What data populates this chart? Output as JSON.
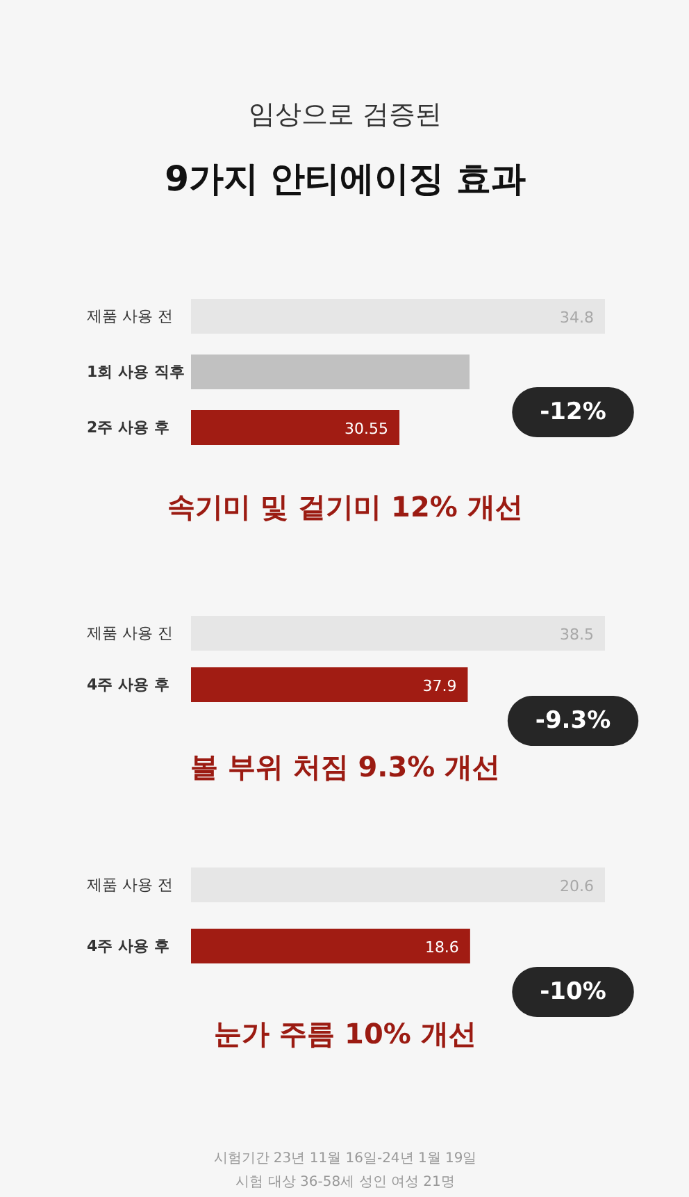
{
  "chart_data": [
    {
      "type": "bar",
      "orientation": "horizontal",
      "subtitle": "임상으로 검증된",
      "title": "9가지 안티에이징 효과",
      "categories": [
        "제품 사용 전",
        "1회 사용 직후",
        "2주 사용 후"
      ],
      "values": [
        34.8,
        32.0,
        30.55
      ],
      "value_labels": [
        "34.8",
        null,
        "30.55"
      ],
      "colors": [
        "#e6e6e6",
        "#c1c1c1",
        "#a11c13"
      ],
      "xlim": [
        26.24,
        34.8
      ],
      "annotations": [
        "속기미 및 겉기미 12% 개선",
        "-12%"
      ]
    },
    {
      "type": "bar",
      "orientation": "horizontal",
      "categories": [
        "제품 사용 진",
        "4주 사용 후"
      ],
      "values": [
        38.5,
        37.9
      ],
      "value_labels": [
        "38.5",
        "37.9"
      ],
      "colors": [
        "#e6e6e6",
        "#a11c13"
      ],
      "xlim": [
        36.69,
        38.5
      ],
      "annotations": [
        "볼 부위 처짐 9.3% 개선",
        "-9.3%"
      ]
    },
    {
      "type": "bar",
      "orientation": "horizontal",
      "categories": [
        "제품 사용 전",
        "4주 사용 후"
      ],
      "values": [
        20.6,
        18.6
      ],
      "value_labels": [
        "20.6",
        "18.6"
      ],
      "colors": [
        "#e6e6e6",
        "#a11c13"
      ],
      "xlim": [
        14.46,
        20.6
      ],
      "annotations": [
        "눈가 주름 10% 개선",
        "-10%",
        "시험기간 23년 11월 16일-24년 1월 19일",
        "시험 대상 36-58세 성인 여성 21명"
      ]
    }
  ]
}
